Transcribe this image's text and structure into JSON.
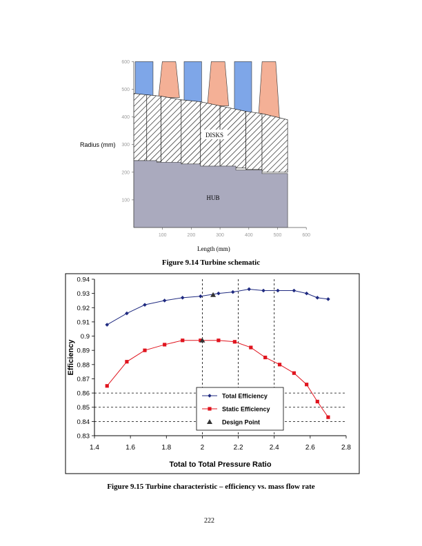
{
  "chart_data": [
    {
      "type": "diagram",
      "xlabel": "Length (mm)",
      "ylabel": "Radius (mm)",
      "x_ticks": [
        100,
        200,
        300,
        400,
        500,
        600
      ],
      "y_ticks": [
        100,
        200,
        300,
        400,
        500,
        600
      ],
      "xlim": [
        0,
        600
      ],
      "ylim": [
        0,
        600
      ],
      "hub_label": "HUB",
      "disks_label": "DISKS",
      "caption": "Figure 9.14 Turbine schematic",
      "colors": {
        "stator": "#7ea6e8",
        "rotor": "#f4b096",
        "hub": "#aaaabe",
        "hatch": "#000000"
      }
    },
    {
      "type": "line",
      "xlabel": "Total to Total Pressure Ratio",
      "ylabel": "Efficiency",
      "xlim": [
        1.4,
        2.8
      ],
      "ylim": [
        0.83,
        0.94
      ],
      "x_ticks": [
        "1.4",
        "1.6",
        "1.8",
        "2",
        "2.2",
        "2.4",
        "2.6",
        "2.8"
      ],
      "y_ticks": [
        "0.83",
        "0.84",
        "0.85",
        "0.86",
        "0.87",
        "0.88",
        "0.89",
        "0.9",
        "0.91",
        "0.92",
        "0.93",
        "0.94"
      ],
      "vertical_dashed_x": [
        2.0,
        2.2,
        2.4
      ],
      "horizontal_dashed_y": [
        0.84,
        0.85,
        0.86
      ],
      "legend_position": "bottom-center",
      "series": [
        {
          "name": "Total Efficiency",
          "color": "#1f2a80",
          "marker": "diamond",
          "x": [
            1.47,
            1.58,
            1.68,
            1.79,
            1.89,
            1.99,
            2.09,
            2.17,
            2.26,
            2.34,
            2.42,
            2.51,
            2.58,
            2.64,
            2.7
          ],
          "y": [
            0.908,
            0.916,
            0.922,
            0.925,
            0.927,
            0.928,
            0.93,
            0.931,
            0.933,
            0.932,
            0.932,
            0.932,
            0.93,
            0.927,
            0.926
          ]
        },
        {
          "name": "Static Efficiency",
          "color": "#e0141e",
          "marker": "square",
          "x": [
            1.47,
            1.58,
            1.68,
            1.79,
            1.89,
            1.99,
            2.09,
            2.18,
            2.27,
            2.35,
            2.43,
            2.51,
            2.58,
            2.64,
            2.7
          ],
          "y": [
            0.865,
            0.882,
            0.89,
            0.894,
            0.897,
            0.897,
            0.897,
            0.896,
            0.892,
            0.885,
            0.88,
            0.874,
            0.866,
            0.854,
            0.843
          ]
        },
        {
          "name": "Design Point",
          "color": "#333333",
          "marker": "triangle",
          "x": [
            2.06,
            2.0
          ],
          "y": [
            0.929,
            0.897
          ]
        }
      ],
      "caption": "Figure 9.15 Turbine characteristic – efficiency vs. mass flow rate"
    }
  ],
  "page_number": "222"
}
